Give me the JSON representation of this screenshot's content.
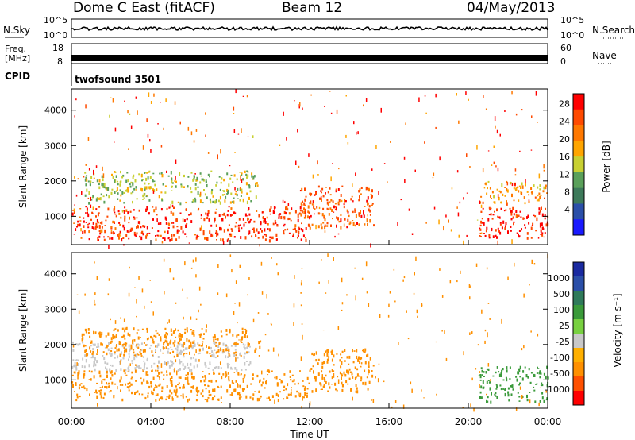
{
  "header": {
    "title": "Dome C East (fitACF)",
    "beam": "Beam 12",
    "date": "04/May/2013"
  },
  "panels": {
    "nsky_label": "N.Sky",
    "nsearch_label": "N.Search",
    "freq_label": "Freq.",
    "freq_unit": "[MHz]",
    "nave_label": "Nave",
    "cpid_label": "CPID",
    "cpid_value": "twofsound 3501",
    "noise_ticks_left": [
      "10^5",
      "10^0"
    ],
    "noise_ticks_right": [
      "10^5",
      "10^0"
    ],
    "freq_ticks": [
      "18",
      "8"
    ],
    "nave_ticks": [
      "60",
      "0"
    ]
  },
  "colors": {
    "power_scale": [
      "#1a1aff",
      "#2b4fa8",
      "#3d7a5a",
      "#5aa05a",
      "#c8d032",
      "#ffa500",
      "#ff7800",
      "#ff4a00",
      "#ff0000"
    ],
    "velocity_scale": [
      "#ff0000",
      "#ff5000",
      "#ff9000",
      "#ffb000",
      "#c8c8c8",
      "#78d040",
      "#3a9a3a",
      "#2f7a5a",
      "#2b4fa8",
      "#1a2aa0"
    ]
  },
  "chart_data": [
    {
      "type": "heatmap",
      "name": "power",
      "ylabel": "Slant Range [km]",
      "yticks": [
        "1000",
        "2000",
        "3000",
        "4000"
      ],
      "ylim": [
        200,
        4600
      ],
      "xlim": [
        0,
        24
      ],
      "colorbar_label": "Power [dB]",
      "colorbar_ticks": [
        "4",
        "8",
        "12",
        "16",
        "20",
        "24",
        "28"
      ],
      "colorbar_range": [
        0,
        30
      ],
      "bands": [
        {
          "t0": 0,
          "t1": 11.8,
          "r0": 350,
          "r1": 1300,
          "value": 26
        },
        {
          "t0": 11.5,
          "t1": 15.2,
          "r0": 700,
          "r1": 1900,
          "value": 24
        },
        {
          "t0": 20.5,
          "t1": 24,
          "r0": 400,
          "r1": 1300,
          "value": 27
        },
        {
          "t0": 0.5,
          "t1": 9.5,
          "r0": 1400,
          "r1": 2300,
          "value": 14
        },
        {
          "t0": 20.5,
          "t1": 24,
          "r0": 1400,
          "r1": 2000,
          "value": 20
        }
      ]
    },
    {
      "type": "heatmap",
      "name": "velocity",
      "ylabel": "Slant Range [km]",
      "yticks": [
        "1000",
        "2000",
        "3000",
        "4000"
      ],
      "ylim": [
        200,
        4600
      ],
      "xlim": [
        0,
        24
      ],
      "colorbar_label": "Velocity [m s⁻¹]",
      "colorbar_ticks": [
        "1000",
        "500",
        "100",
        "25",
        "-25",
        "-100",
        "-500",
        "-1000"
      ],
      "bands": [
        {
          "t0": 0,
          "t1": 12,
          "r0": 450,
          "r1": 1300,
          "value": -150
        },
        {
          "t0": 12,
          "t1": 15.2,
          "r0": 700,
          "r1": 1900,
          "value": -120
        },
        {
          "t0": 20.5,
          "t1": 24,
          "r0": 400,
          "r1": 1400,
          "value": 300
        },
        {
          "t0": 0,
          "t1": 9,
          "r0": 1300,
          "r1": 2100,
          "value": 0
        },
        {
          "t0": 0.5,
          "t1": 9.5,
          "r0": 1700,
          "r1": 2500,
          "value": -120
        }
      ]
    }
  ],
  "xaxis": {
    "ticks": [
      "00:00",
      "04:00",
      "08:00",
      "12:00",
      "16:00",
      "20:00",
      "00:00"
    ],
    "label": "Time UT"
  }
}
